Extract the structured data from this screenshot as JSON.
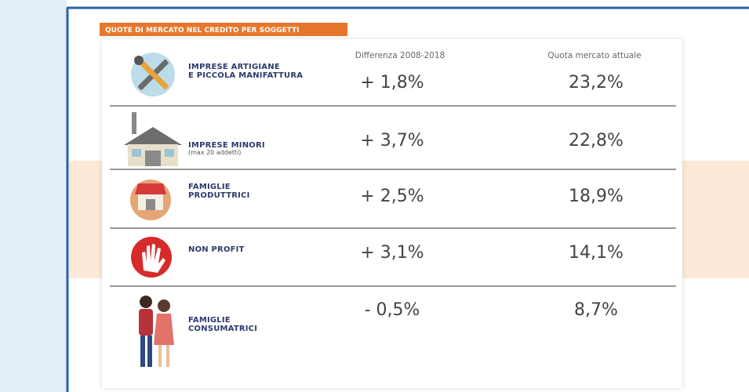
{
  "header": {
    "title": "QUOTE DI MERCATO NEL CREDITO PER SOGGETTI"
  },
  "table": {
    "columns": [
      "Differenza 2008-2018",
      "Quota mercato attuale"
    ],
    "rows": [
      {
        "label": [
          "IMPRESE ARTIGIANE",
          "E PICCOLA MANIFATTURA"
        ],
        "difference": "+ 1,8%",
        "share": "23,2%"
      },
      {
        "label": [
          "IMPRESE MINORI"
        ],
        "note": "(max 20 addetti)",
        "difference": "+ 3,7%",
        "share": "22,8%"
      },
      {
        "label": [
          "FAMIGLIE",
          "PRODUTTRICI"
        ],
        "difference": "+ 2,5%",
        "share": "18,9%"
      },
      {
        "label": [
          "NON PROFIT"
        ],
        "difference": "+ 3,1%",
        "share": "14,1%"
      },
      {
        "label": [
          "FAMIGLIE",
          "CONSUMATRICI"
        ],
        "difference": "- 0,5%",
        "share": "8,7%"
      }
    ]
  }
}
